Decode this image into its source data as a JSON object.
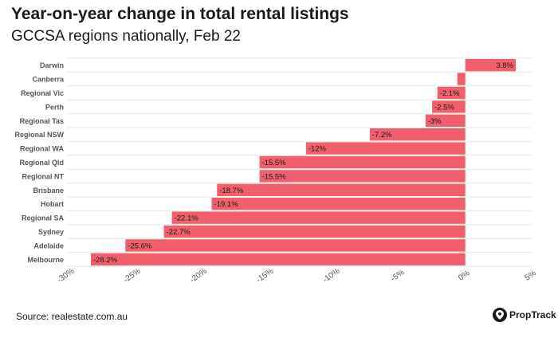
{
  "header": {
    "title": "Year-on-year change in total rental listings",
    "subtitle": "GCCSA regions nationally, Feb 22"
  },
  "footer": {
    "source": "Source: realestate.com.au",
    "brand": "PropTrack",
    "brand_icon": "proptrack-logo-icon"
  },
  "colors": {
    "bar": "#F0606C",
    "grid": "#e6e6e6",
    "text": "#1a1a1a",
    "axis_label": "#555555"
  },
  "chart_data": {
    "type": "bar",
    "orientation": "horizontal",
    "title": "Year-on-year change in total rental listings",
    "subtitle": "GCCSA regions nationally, Feb 22",
    "categories": [
      "Darwin",
      "Canberra",
      "Regional Vic",
      "Perth",
      "Regional Tas",
      "Regional NSW",
      "Regional WA",
      "Regional Qld",
      "Regional NT",
      "Brisbane",
      "Hobart",
      "Regional SA",
      "Sydney",
      "Adelaide",
      "Melbourne"
    ],
    "values": [
      3.8,
      -0.6,
      -2.1,
      -2.5,
      -3,
      -7.2,
      -12,
      -15.5,
      -15.5,
      -18.7,
      -19.1,
      -22.1,
      -22.7,
      -25.6,
      -28.2
    ],
    "data_labels": [
      "3.8%",
      "",
      "-2.1%",
      "-2.5%",
      "-3%",
      "-7.2%",
      "-12%",
      "-15.5%",
      "-15.5%",
      "-18.7%",
      "-19.1%",
      "-22.1%",
      "-22.7%",
      "-25.6%",
      "-28.2%"
    ],
    "xlim": [
      -30,
      5
    ],
    "xticks": [
      -30,
      -25,
      -20,
      -15,
      -10,
      -5,
      0,
      5
    ],
    "xtick_labels": [
      "-30%",
      "-25%",
      "-20%",
      "-15%",
      "-10%",
      "-5%",
      "0%",
      "5%"
    ],
    "grid": true,
    "legend": "none"
  }
}
